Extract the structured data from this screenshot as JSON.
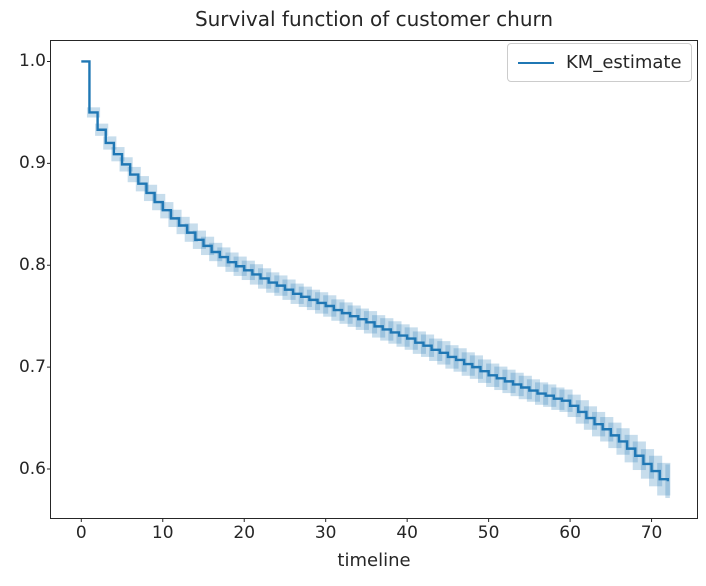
{
  "chart_data": {
    "type": "line",
    "subtype": "kaplan-meier-step",
    "step_mode": "post",
    "title": "Survival function of customer churn",
    "xlabel": "timeline",
    "ylabel": "",
    "grid": false,
    "xlim": [
      -3.78,
      75.64
    ],
    "ylim": [
      0.5514,
      1.0206
    ],
    "xticks": [
      0,
      10,
      20,
      30,
      40,
      50,
      60,
      70
    ],
    "xtick_labels": [
      "0",
      "10",
      "20",
      "30",
      "40",
      "50",
      "60",
      "70"
    ],
    "yticks": [
      0.6,
      0.7,
      0.8,
      0.9,
      1.0
    ],
    "ytick_labels": [
      "0.6",
      "0.7",
      "0.8",
      "0.9",
      "1.0"
    ],
    "legend": {
      "position": "upper right",
      "entries": [
        {
          "label": "KM_estimate",
          "color": "#1f77b4"
        }
      ]
    },
    "colors": {
      "line": "#1f77b4",
      "ci_band": "#1f77b4",
      "ci_band_opacity": 0.25,
      "axis": "#262626",
      "text": "#262626",
      "background": "#ffffff"
    },
    "series": [
      {
        "name": "KM_estimate",
        "color": "#1f77b4",
        "x": [
          0,
          1,
          2,
          3,
          4,
          5,
          6,
          7,
          8,
          9,
          10,
          11,
          12,
          13,
          14,
          15,
          16,
          17,
          18,
          19,
          20,
          21,
          22,
          23,
          24,
          25,
          26,
          27,
          28,
          29,
          30,
          31,
          32,
          33,
          34,
          35,
          36,
          37,
          38,
          39,
          40,
          41,
          42,
          43,
          44,
          45,
          46,
          47,
          48,
          49,
          50,
          51,
          52,
          53,
          54,
          55,
          56,
          57,
          58,
          59,
          60,
          61,
          62,
          63,
          64,
          65,
          66,
          67,
          68,
          69,
          70,
          71,
          72
        ],
        "y": [
          1.0,
          0.95,
          0.933,
          0.92,
          0.909,
          0.899,
          0.889,
          0.88,
          0.871,
          0.862,
          0.854,
          0.846,
          0.839,
          0.832,
          0.825,
          0.819,
          0.813,
          0.808,
          0.803,
          0.799,
          0.795,
          0.791,
          0.787,
          0.783,
          0.78,
          0.776,
          0.772,
          0.769,
          0.766,
          0.763,
          0.76,
          0.756,
          0.753,
          0.75,
          0.747,
          0.744,
          0.74,
          0.737,
          0.734,
          0.731,
          0.728,
          0.724,
          0.721,
          0.717,
          0.714,
          0.71,
          0.707,
          0.703,
          0.7,
          0.696,
          0.692,
          0.689,
          0.686,
          0.683,
          0.68,
          0.677,
          0.674,
          0.672,
          0.669,
          0.667,
          0.662,
          0.656,
          0.65,
          0.644,
          0.639,
          0.633,
          0.627,
          0.62,
          0.613,
          0.605,
          0.598,
          0.59,
          0.588
        ],
        "ci_half": [
          0.0,
          0.005,
          0.006,
          0.0065,
          0.007,
          0.007,
          0.0075,
          0.0075,
          0.008,
          0.008,
          0.008,
          0.0085,
          0.0085,
          0.009,
          0.009,
          0.009,
          0.009,
          0.0095,
          0.0095,
          0.0095,
          0.0095,
          0.01,
          0.01,
          0.01,
          0.01,
          0.01,
          0.01,
          0.01,
          0.01,
          0.0105,
          0.0105,
          0.0105,
          0.0105,
          0.0105,
          0.0105,
          0.011,
          0.011,
          0.011,
          0.011,
          0.011,
          0.011,
          0.011,
          0.011,
          0.011,
          0.0115,
          0.0115,
          0.0115,
          0.0115,
          0.0115,
          0.0115,
          0.0115,
          0.0115,
          0.0115,
          0.0115,
          0.0115,
          0.011,
          0.011,
          0.011,
          0.011,
          0.011,
          0.011,
          0.0115,
          0.0115,
          0.012,
          0.012,
          0.0125,
          0.013,
          0.0135,
          0.014,
          0.0145,
          0.015,
          0.016,
          0.0165
        ]
      }
    ]
  }
}
